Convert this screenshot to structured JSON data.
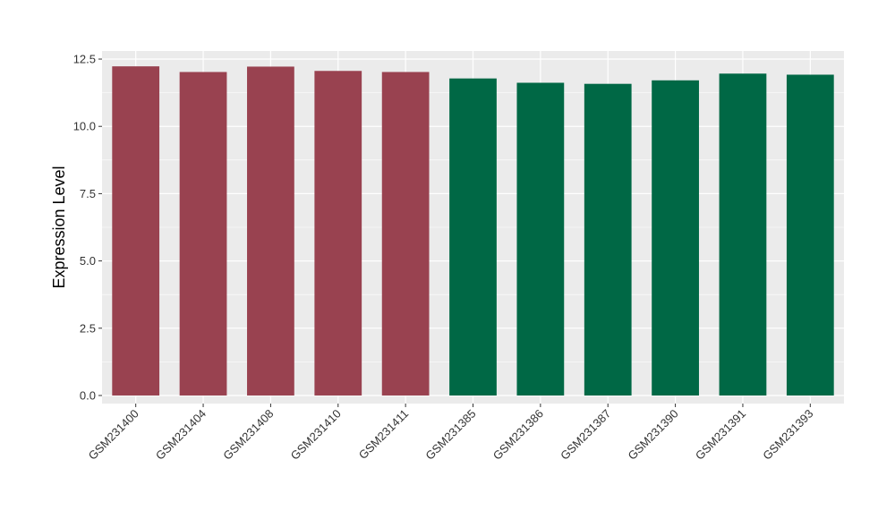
{
  "chart_data": {
    "type": "bar",
    "title": "",
    "xlabel": "",
    "ylabel": "Expression Level",
    "ylim": [
      -0.3,
      12.8
    ],
    "yticks": [
      0.0,
      2.5,
      5.0,
      7.5,
      10.0,
      12.5
    ],
    "ytick_labels": [
      "0.0",
      "2.5",
      "5.0",
      "7.5",
      "10.0",
      "12.5"
    ],
    "grid": true,
    "legend": "none",
    "categories": [
      "GSM231400",
      "GSM231404",
      "GSM231408",
      "GSM231410",
      "GSM231411",
      "GSM231385",
      "GSM231386",
      "GSM231387",
      "GSM231390",
      "GSM231391",
      "GSM231393"
    ],
    "values": [
      12.23,
      12.02,
      12.22,
      12.06,
      12.02,
      11.78,
      11.62,
      11.58,
      11.71,
      11.96,
      11.92
    ],
    "colors": [
      "#994250",
      "#994250",
      "#994250",
      "#994250",
      "#994250",
      "#006845",
      "#006845",
      "#006845",
      "#006845",
      "#006845",
      "#006845"
    ],
    "panel_background": "#EBEBEB",
    "grid_color": "#FFFFFF"
  }
}
